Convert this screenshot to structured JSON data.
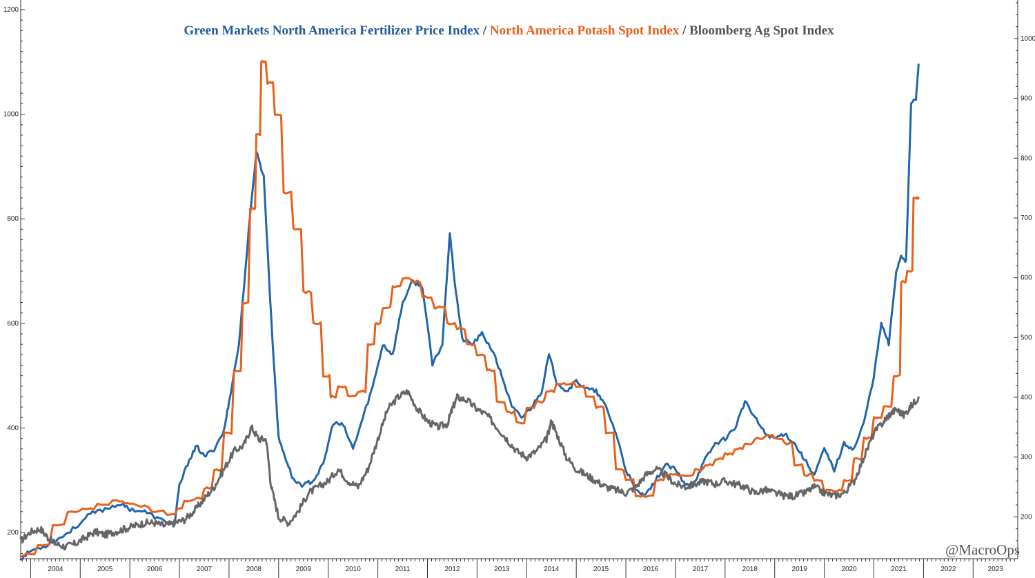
{
  "chart_data": {
    "type": "line",
    "title_parts": [
      {
        "text": "Green Markets North America Fertilizer Price Index",
        "color": "#1f5c99"
      },
      {
        "text": " / ",
        "color": "#333333"
      },
      {
        "text": "North America Potash Spot Index",
        "color": "#e8601c"
      },
      {
        "text": " / ",
        "color": "#333333"
      },
      {
        "text": "Bloomberg Ag Spot Index",
        "color": "#555555"
      }
    ],
    "watermark": "@MacroOps",
    "x_range": [
      2003.8,
      2023.9
    ],
    "years": [
      "2004",
      "2005",
      "2006",
      "2007",
      "2008",
      "2009",
      "2010",
      "2011",
      "2012",
      "2013",
      "2014",
      "2015",
      "2016",
      "2017",
      "2018",
      "2019",
      "2020",
      "2021",
      "2022",
      "2023"
    ],
    "left_axis": {
      "ticks": [
        200,
        400,
        600,
        800,
        1000,
        1200
      ],
      "range": [
        150,
        1200
      ]
    },
    "right_axis": {
      "ticks": [
        200,
        300,
        400,
        500,
        600,
        700,
        800,
        900,
        1000
      ],
      "range": [
        130,
        1060
      ]
    },
    "grid": false,
    "series": [
      {
        "key": "fertilizer",
        "axis": "left",
        "color": "#2166a8",
        "points": [
          [
            2003.8,
            150
          ],
          [
            2004.0,
            165
          ],
          [
            2004.3,
            175
          ],
          [
            2004.6,
            190
          ],
          [
            2004.9,
            210
          ],
          [
            2005.2,
            235
          ],
          [
            2005.5,
            245
          ],
          [
            2005.8,
            255
          ],
          [
            2006.0,
            245
          ],
          [
            2006.3,
            240
          ],
          [
            2006.6,
            225
          ],
          [
            2006.9,
            215
          ],
          [
            2007.0,
            290
          ],
          [
            2007.2,
            340
          ],
          [
            2007.35,
            365
          ],
          [
            2007.5,
            345
          ],
          [
            2007.7,
            360
          ],
          [
            2007.9,
            395
          ],
          [
            2008.0,
            450
          ],
          [
            2008.2,
            560
          ],
          [
            2008.4,
            780
          ],
          [
            2008.55,
            930
          ],
          [
            2008.7,
            880
          ],
          [
            2008.85,
            610
          ],
          [
            2009.0,
            380
          ],
          [
            2009.15,
            340
          ],
          [
            2009.3,
            300
          ],
          [
            2009.5,
            290
          ],
          [
            2009.7,
            300
          ],
          [
            2009.9,
            330
          ],
          [
            2010.1,
            410
          ],
          [
            2010.3,
            405
          ],
          [
            2010.5,
            360
          ],
          [
            2010.7,
            420
          ],
          [
            2010.9,
            480
          ],
          [
            2011.1,
            560
          ],
          [
            2011.3,
            540
          ],
          [
            2011.5,
            640
          ],
          [
            2011.7,
            680
          ],
          [
            2011.9,
            670
          ],
          [
            2012.1,
            520
          ],
          [
            2012.3,
            560
          ],
          [
            2012.45,
            775
          ],
          [
            2012.55,
            680
          ],
          [
            2012.7,
            570
          ],
          [
            2012.9,
            560
          ],
          [
            2013.1,
            580
          ],
          [
            2013.3,
            550
          ],
          [
            2013.5,
            500
          ],
          [
            2013.7,
            440
          ],
          [
            2013.9,
            420
          ],
          [
            2014.1,
            440
          ],
          [
            2014.3,
            470
          ],
          [
            2014.45,
            540
          ],
          [
            2014.6,
            490
          ],
          [
            2014.8,
            470
          ],
          [
            2015.0,
            490
          ],
          [
            2015.2,
            475
          ],
          [
            2015.4,
            470
          ],
          [
            2015.6,
            440
          ],
          [
            2015.8,
            390
          ],
          [
            2016.0,
            320
          ],
          [
            2016.2,
            280
          ],
          [
            2016.4,
            270
          ],
          [
            2016.6,
            300
          ],
          [
            2016.8,
            330
          ],
          [
            2017.0,
            320
          ],
          [
            2017.2,
            290
          ],
          [
            2017.4,
            300
          ],
          [
            2017.6,
            340
          ],
          [
            2017.8,
            370
          ],
          [
            2018.0,
            380
          ],
          [
            2018.2,
            400
          ],
          [
            2018.4,
            450
          ],
          [
            2018.6,
            420
          ],
          [
            2018.8,
            390
          ],
          [
            2019.0,
            380
          ],
          [
            2019.2,
            390
          ],
          [
            2019.4,
            370
          ],
          [
            2019.6,
            340
          ],
          [
            2019.8,
            310
          ],
          [
            2020.0,
            360
          ],
          [
            2020.2,
            320
          ],
          [
            2020.4,
            370
          ],
          [
            2020.6,
            360
          ],
          [
            2020.8,
            410
          ],
          [
            2021.0,
            500
          ],
          [
            2021.15,
            600
          ],
          [
            2021.3,
            560
          ],
          [
            2021.45,
            700
          ],
          [
            2021.55,
            730
          ],
          [
            2021.65,
            720
          ],
          [
            2021.75,
            1020
          ],
          [
            2021.85,
            1030
          ],
          [
            2021.9,
            1095
          ]
        ]
      },
      {
        "key": "potash",
        "axis": "left",
        "color": "#e8601c",
        "points": [
          [
            2003.8,
            155
          ],
          [
            2004.0,
            160
          ],
          [
            2004.3,
            175
          ],
          [
            2004.6,
            215
          ],
          [
            2004.9,
            240
          ],
          [
            2005.2,
            245
          ],
          [
            2005.5,
            255
          ],
          [
            2005.8,
            260
          ],
          [
            2006.0,
            255
          ],
          [
            2006.3,
            250
          ],
          [
            2006.6,
            240
          ],
          [
            2006.9,
            235
          ],
          [
            2007.0,
            245
          ],
          [
            2007.2,
            260
          ],
          [
            2007.4,
            265
          ],
          [
            2007.6,
            285
          ],
          [
            2007.8,
            320
          ],
          [
            2008.0,
            390
          ],
          [
            2008.2,
            510
          ],
          [
            2008.35,
            640
          ],
          [
            2008.5,
            820
          ],
          [
            2008.6,
            960
          ],
          [
            2008.7,
            1100
          ],
          [
            2008.85,
            1060
          ],
          [
            2009.0,
            1000
          ],
          [
            2009.2,
            850
          ],
          [
            2009.4,
            780
          ],
          [
            2009.6,
            660
          ],
          [
            2009.8,
            600
          ],
          [
            2010.0,
            500
          ],
          [
            2010.1,
            460
          ],
          [
            2010.3,
            480
          ],
          [
            2010.5,
            460
          ],
          [
            2010.7,
            470
          ],
          [
            2010.9,
            560
          ],
          [
            2011.0,
            600
          ],
          [
            2011.2,
            630
          ],
          [
            2011.4,
            670
          ],
          [
            2011.6,
            685
          ],
          [
            2011.8,
            680
          ],
          [
            2012.0,
            650
          ],
          [
            2012.3,
            630
          ],
          [
            2012.5,
            600
          ],
          [
            2012.7,
            590
          ],
          [
            2012.9,
            560
          ],
          [
            2013.1,
            540
          ],
          [
            2013.3,
            510
          ],
          [
            2013.5,
            450
          ],
          [
            2013.7,
            430
          ],
          [
            2013.9,
            410
          ],
          [
            2014.1,
            440
          ],
          [
            2014.3,
            450
          ],
          [
            2014.5,
            470
          ],
          [
            2014.7,
            485
          ],
          [
            2014.9,
            485
          ],
          [
            2015.1,
            480
          ],
          [
            2015.3,
            460
          ],
          [
            2015.5,
            440
          ],
          [
            2015.7,
            390
          ],
          [
            2015.9,
            320
          ],
          [
            2016.1,
            300
          ],
          [
            2016.3,
            270
          ],
          [
            2016.5,
            270
          ],
          [
            2016.7,
            300
          ],
          [
            2016.9,
            310
          ],
          [
            2017.1,
            310
          ],
          [
            2017.3,
            310
          ],
          [
            2017.5,
            320
          ],
          [
            2017.7,
            330
          ],
          [
            2017.9,
            340
          ],
          [
            2018.1,
            350
          ],
          [
            2018.3,
            360
          ],
          [
            2018.5,
            370
          ],
          [
            2018.7,
            380
          ],
          [
            2018.9,
            385
          ],
          [
            2019.1,
            380
          ],
          [
            2019.3,
            370
          ],
          [
            2019.5,
            330
          ],
          [
            2019.7,
            310
          ],
          [
            2019.9,
            300
          ],
          [
            2020.1,
            280
          ],
          [
            2020.3,
            280
          ],
          [
            2020.5,
            300
          ],
          [
            2020.7,
            340
          ],
          [
            2020.9,
            380
          ],
          [
            2021.1,
            420
          ],
          [
            2021.3,
            440
          ],
          [
            2021.5,
            500
          ],
          [
            2021.6,
            680
          ],
          [
            2021.75,
            700
          ],
          [
            2021.85,
            840
          ],
          [
            2021.9,
            840
          ]
        ]
      },
      {
        "key": "bloomberg",
        "axis": "right",
        "color": "#666666",
        "points": [
          [
            2003.8,
            160
          ],
          [
            2004.0,
            175
          ],
          [
            2004.2,
            180
          ],
          [
            2004.35,
            165
          ],
          [
            2004.5,
            155
          ],
          [
            2004.7,
            150
          ],
          [
            2004.9,
            155
          ],
          [
            2005.1,
            165
          ],
          [
            2005.3,
            175
          ],
          [
            2005.5,
            170
          ],
          [
            2005.7,
            175
          ],
          [
            2005.9,
            180
          ],
          [
            2006.1,
            185
          ],
          [
            2006.3,
            190
          ],
          [
            2006.5,
            190
          ],
          [
            2006.7,
            185
          ],
          [
            2006.9,
            190
          ],
          [
            2007.1,
            195
          ],
          [
            2007.3,
            210
          ],
          [
            2007.5,
            230
          ],
          [
            2007.7,
            250
          ],
          [
            2007.9,
            280
          ],
          [
            2008.1,
            310
          ],
          [
            2008.3,
            320
          ],
          [
            2008.45,
            350
          ],
          [
            2008.6,
            330
          ],
          [
            2008.75,
            330
          ],
          [
            2008.85,
            250
          ],
          [
            2009.0,
            200
          ],
          [
            2009.2,
            190
          ],
          [
            2009.4,
            210
          ],
          [
            2009.6,
            240
          ],
          [
            2009.8,
            250
          ],
          [
            2010.0,
            260
          ],
          [
            2010.2,
            280
          ],
          [
            2010.4,
            260
          ],
          [
            2010.6,
            250
          ],
          [
            2010.8,
            280
          ],
          [
            2011.0,
            330
          ],
          [
            2011.2,
            380
          ],
          [
            2011.4,
            400
          ],
          [
            2011.6,
            410
          ],
          [
            2011.8,
            380
          ],
          [
            2012.0,
            360
          ],
          [
            2012.2,
            350
          ],
          [
            2012.4,
            355
          ],
          [
            2012.5,
            380
          ],
          [
            2012.6,
            400
          ],
          [
            2012.8,
            395
          ],
          [
            2013.0,
            380
          ],
          [
            2013.2,
            370
          ],
          [
            2013.4,
            350
          ],
          [
            2013.6,
            330
          ],
          [
            2013.8,
            310
          ],
          [
            2014.0,
            300
          ],
          [
            2014.2,
            310
          ],
          [
            2014.4,
            330
          ],
          [
            2014.5,
            360
          ],
          [
            2014.6,
            340
          ],
          [
            2014.8,
            300
          ],
          [
            2015.0,
            280
          ],
          [
            2015.2,
            270
          ],
          [
            2015.4,
            260
          ],
          [
            2015.6,
            250
          ],
          [
            2015.8,
            245
          ],
          [
            2016.0,
            240
          ],
          [
            2016.2,
            250
          ],
          [
            2016.4,
            270
          ],
          [
            2016.6,
            280
          ],
          [
            2016.8,
            270
          ],
          [
            2017.0,
            255
          ],
          [
            2017.2,
            250
          ],
          [
            2017.4,
            255
          ],
          [
            2017.6,
            260
          ],
          [
            2017.8,
            255
          ],
          [
            2018.0,
            260
          ],
          [
            2018.2,
            255
          ],
          [
            2018.4,
            250
          ],
          [
            2018.6,
            240
          ],
          [
            2018.8,
            245
          ],
          [
            2019.0,
            240
          ],
          [
            2019.2,
            235
          ],
          [
            2019.4,
            235
          ],
          [
            2019.6,
            240
          ],
          [
            2019.8,
            250
          ],
          [
            2020.0,
            240
          ],
          [
            2020.2,
            235
          ],
          [
            2020.4,
            240
          ],
          [
            2020.6,
            260
          ],
          [
            2020.8,
            300
          ],
          [
            2021.0,
            340
          ],
          [
            2021.2,
            360
          ],
          [
            2021.3,
            370
          ],
          [
            2021.45,
            380
          ],
          [
            2021.6,
            370
          ],
          [
            2021.75,
            385
          ],
          [
            2021.9,
            400
          ]
        ]
      }
    ]
  }
}
